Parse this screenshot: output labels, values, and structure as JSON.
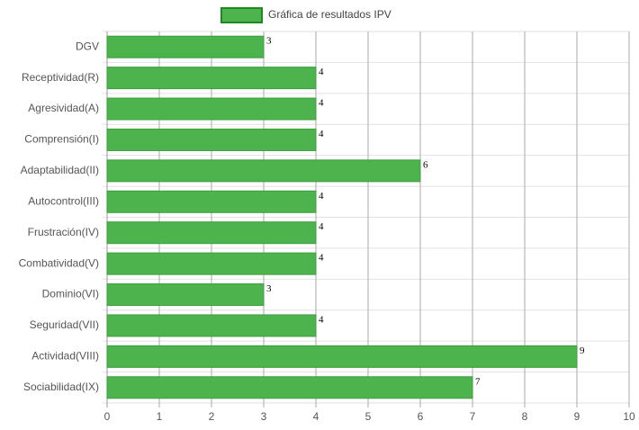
{
  "chart_data": {
    "type": "barh",
    "legend": "Gráfica de resultados IPV",
    "color": "#4db34d",
    "categories": [
      "DGV",
      "Receptividad(R)",
      "Agresividad(A)",
      "Comprensión(I)",
      "Adaptabilidad(II)",
      "Autocontrol(III)",
      "Frustración(IV)",
      "Combatividad(V)",
      "Dominio(VI)",
      "Seguridad(VII)",
      "Actividad(VIII)",
      "Sociabilidad(IX)"
    ],
    "values": [
      3,
      4,
      4,
      4,
      6,
      4,
      4,
      4,
      3,
      4,
      9,
      7
    ],
    "xlim": [
      0,
      10
    ],
    "xticks": [
      0,
      1,
      2,
      3,
      4,
      5,
      6,
      7,
      8,
      9,
      10
    ],
    "grid": true
  }
}
